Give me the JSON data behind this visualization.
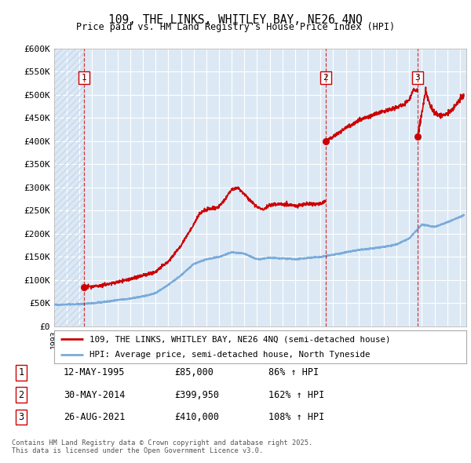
{
  "title": "109, THE LINKS, WHITLEY BAY, NE26 4NQ",
  "subtitle": "Price paid vs. HM Land Registry's House Price Index (HPI)",
  "xlim": [
    1993.0,
    2025.5
  ],
  "ylim": [
    0,
    600000
  ],
  "yticks": [
    0,
    50000,
    100000,
    150000,
    200000,
    250000,
    300000,
    350000,
    400000,
    450000,
    500000,
    550000,
    600000
  ],
  "ytick_labels": [
    "£0",
    "£50K",
    "£100K",
    "£150K",
    "£200K",
    "£250K",
    "£300K",
    "£350K",
    "£400K",
    "£450K",
    "£500K",
    "£550K",
    "£600K"
  ],
  "background_color": "#dce9f5",
  "hatch_color": "#c8d8ec",
  "grid_color": "#ffffff",
  "sale_dates": [
    1995.36,
    2014.41,
    2021.65
  ],
  "sale_prices": [
    85000,
    399950,
    410000
  ],
  "sale_labels": [
    "1",
    "2",
    "3"
  ],
  "legend_line1": "109, THE LINKS, WHITLEY BAY, NE26 4NQ (semi-detached house)",
  "legend_line2": "HPI: Average price, semi-detached house, North Tyneside",
  "table_data": [
    [
      "1",
      "12-MAY-1995",
      "£85,000",
      "86% ↑ HPI"
    ],
    [
      "2",
      "30-MAY-2014",
      "£399,950",
      "162% ↑ HPI"
    ],
    [
      "3",
      "26-AUG-2021",
      "£410,000",
      "108% ↑ HPI"
    ]
  ],
  "footer": "Contains HM Land Registry data © Crown copyright and database right 2025.\nThis data is licensed under the Open Government Licence v3.0.",
  "red_color": "#cc0000",
  "blue_color": "#7aabda",
  "hpi_anchors": [
    [
      1993.0,
      47000
    ],
    [
      1994.0,
      47500
    ],
    [
      1995.0,
      48000
    ],
    [
      1996.0,
      50000
    ],
    [
      1997.0,
      53000
    ],
    [
      1998.0,
      57000
    ],
    [
      1999.0,
      60000
    ],
    [
      2000.0,
      65000
    ],
    [
      2001.0,
      72000
    ],
    [
      2002.0,
      90000
    ],
    [
      2003.0,
      110000
    ],
    [
      2004.0,
      135000
    ],
    [
      2005.0,
      145000
    ],
    [
      2006.0,
      150000
    ],
    [
      2007.0,
      160000
    ],
    [
      2008.0,
      157000
    ],
    [
      2009.0,
      145000
    ],
    [
      2010.0,
      148000
    ],
    [
      2011.0,
      147000
    ],
    [
      2012.0,
      145000
    ],
    [
      2013.0,
      148000
    ],
    [
      2014.0,
      150000
    ],
    [
      2015.0,
      155000
    ],
    [
      2016.0,
      160000
    ],
    [
      2017.0,
      165000
    ],
    [
      2018.0,
      168000
    ],
    [
      2019.0,
      172000
    ],
    [
      2020.0,
      177000
    ],
    [
      2021.0,
      190000
    ],
    [
      2022.0,
      220000
    ],
    [
      2023.0,
      215000
    ],
    [
      2024.0,
      225000
    ],
    [
      2025.3,
      240000
    ]
  ],
  "red_seg1_anchors": [
    [
      1995.36,
      85000
    ],
    [
      1996.0,
      86000
    ],
    [
      1997.0,
      90000
    ],
    [
      1998.0,
      96000
    ],
    [
      1999.0,
      102000
    ],
    [
      2000.0,
      110000
    ],
    [
      2001.0,
      118000
    ],
    [
      2002.0,
      140000
    ],
    [
      2003.0,
      175000
    ],
    [
      2004.0,
      220000
    ],
    [
      2004.5,
      245000
    ],
    [
      2005.0,
      252000
    ],
    [
      2006.0,
      258000
    ],
    [
      2007.0,
      295000
    ],
    [
      2007.5,
      300000
    ],
    [
      2008.0,
      285000
    ],
    [
      2008.5,
      270000
    ],
    [
      2009.0,
      258000
    ],
    [
      2009.5,
      253000
    ],
    [
      2010.0,
      262000
    ],
    [
      2011.0,
      265000
    ],
    [
      2012.0,
      260000
    ],
    [
      2013.0,
      265000
    ],
    [
      2014.0,
      265000
    ],
    [
      2014.41,
      270000
    ]
  ],
  "red_seg2_anchors": [
    [
      2014.41,
      399950
    ],
    [
      2015.0,
      410000
    ],
    [
      2015.5,
      420000
    ],
    [
      2016.0,
      430000
    ],
    [
      2016.5,
      435000
    ],
    [
      2017.0,
      445000
    ],
    [
      2017.5,
      450000
    ],
    [
      2018.0,
      455000
    ],
    [
      2018.5,
      460000
    ],
    [
      2019.0,
      465000
    ],
    [
      2019.5,
      468000
    ],
    [
      2020.0,
      473000
    ],
    [
      2020.5,
      478000
    ],
    [
      2021.0,
      490000
    ],
    [
      2021.3,
      510000
    ],
    [
      2021.65,
      510000
    ]
  ],
  "red_seg3_anchors": [
    [
      2021.65,
      410000
    ],
    [
      2022.0,
      460000
    ],
    [
      2022.3,
      510000
    ],
    [
      2022.6,
      480000
    ],
    [
      2023.0,
      460000
    ],
    [
      2023.5,
      455000
    ],
    [
      2024.0,
      460000
    ],
    [
      2024.5,
      470000
    ],
    [
      2025.0,
      490000
    ],
    [
      2025.3,
      500000
    ]
  ]
}
